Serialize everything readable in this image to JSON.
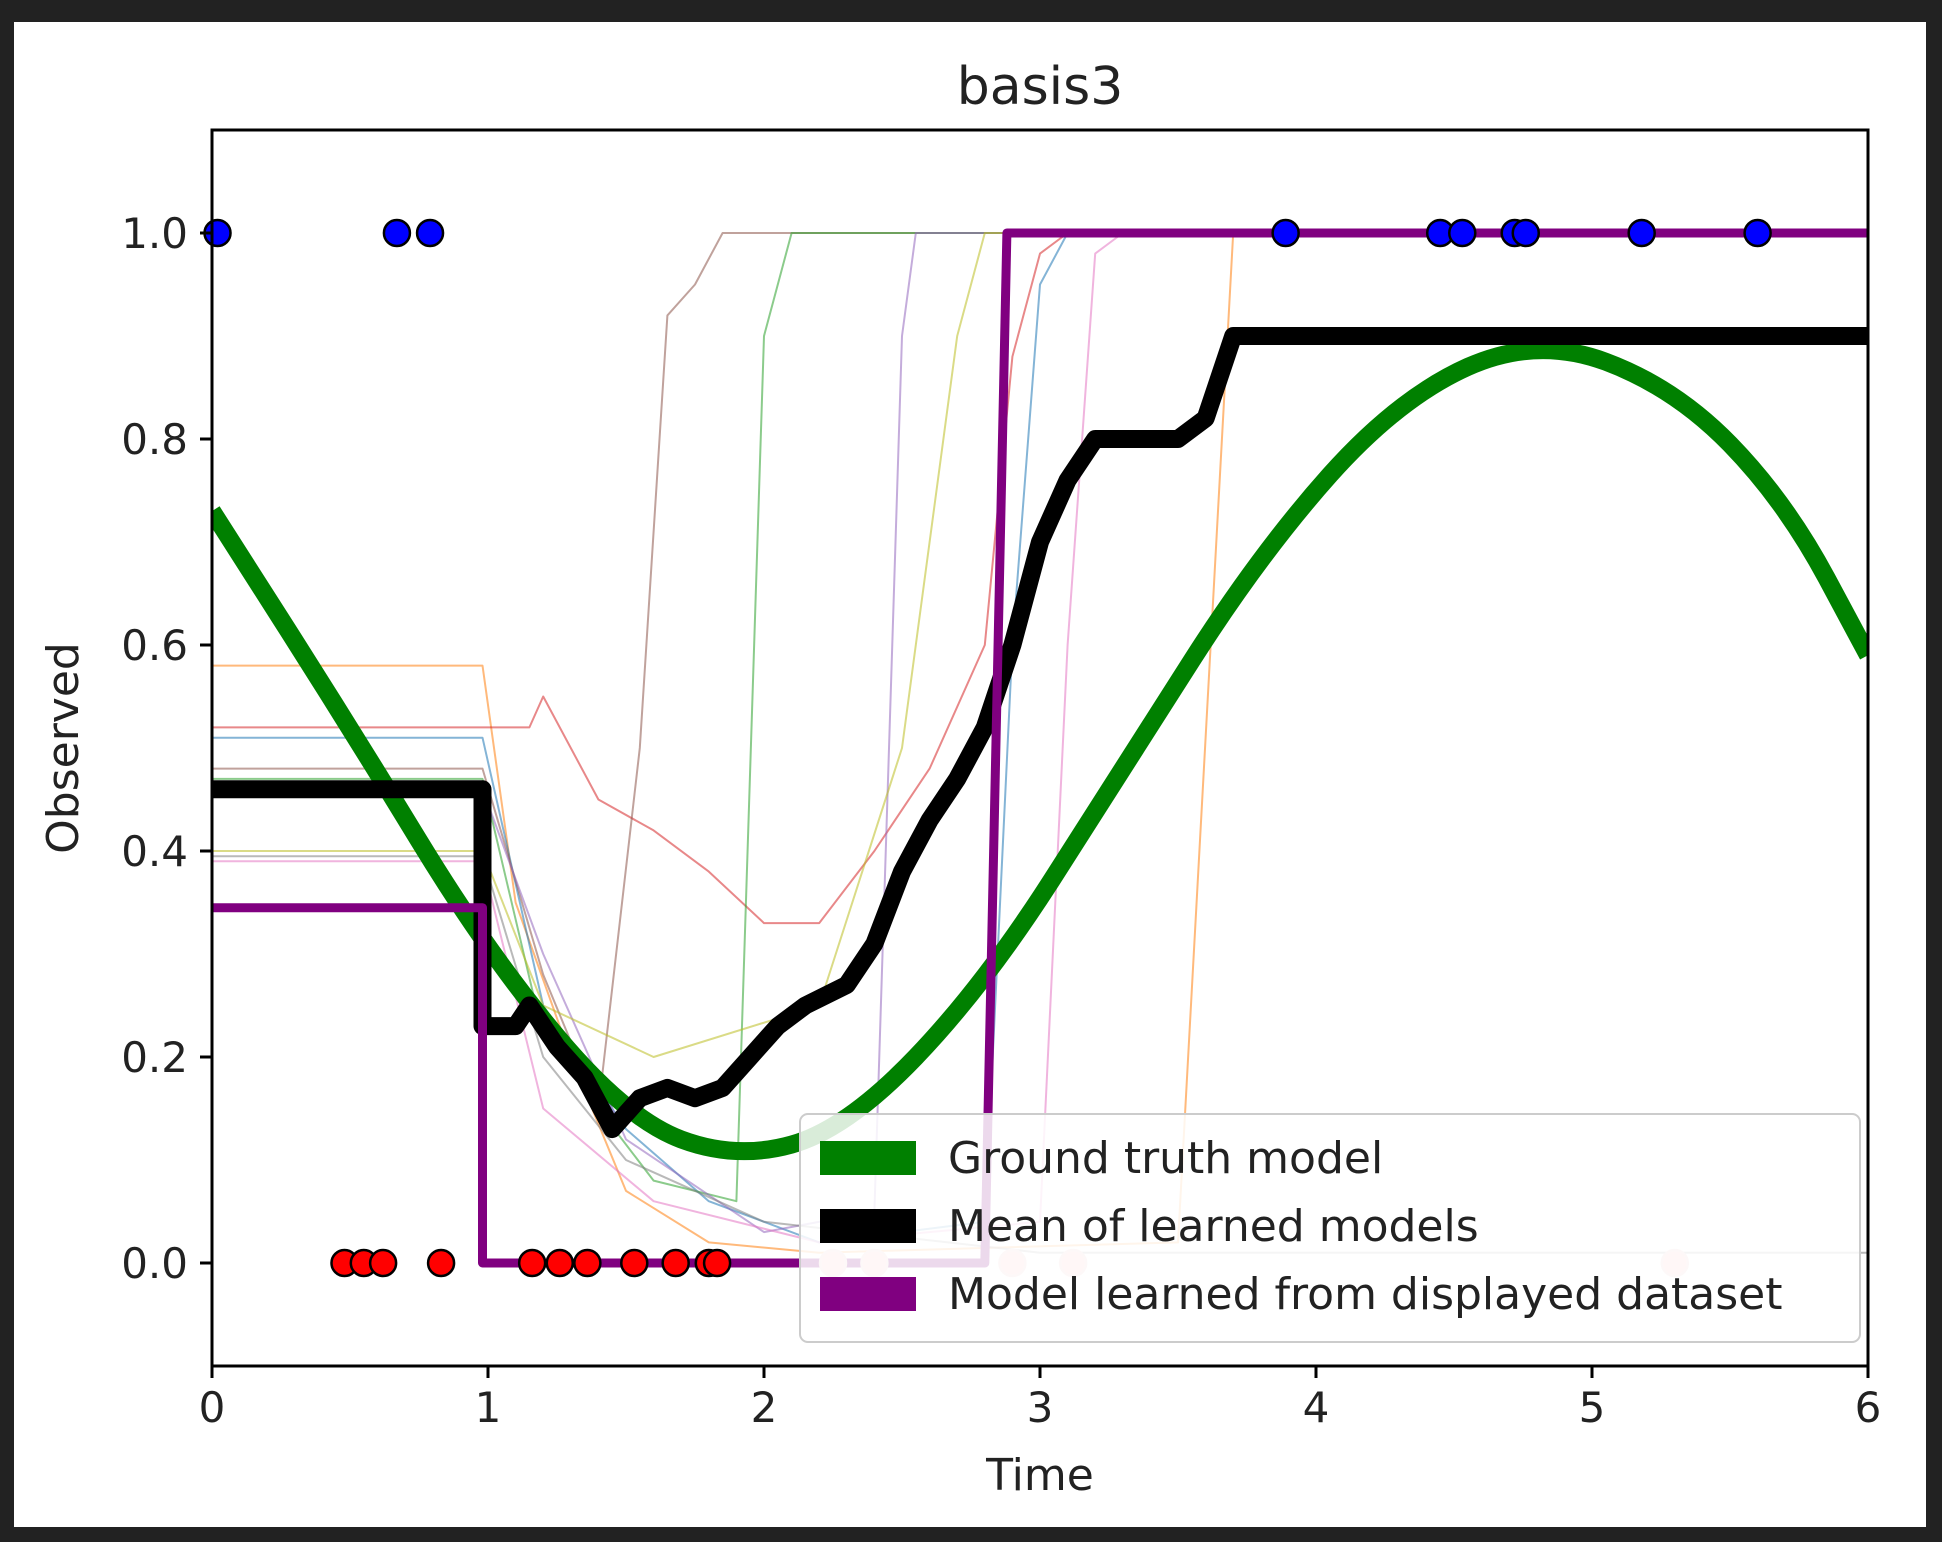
{
  "chart_data": {
    "type": "line",
    "title": "basis3",
    "xlabel": "Time",
    "ylabel": "Observed",
    "xlim": [
      0,
      6
    ],
    "ylim": [
      -0.1,
      1.1
    ],
    "x_ticks": [
      "0",
      "1",
      "2",
      "3",
      "4",
      "5",
      "6"
    ],
    "y_ticks": [
      "0.0",
      "0.2",
      "0.4",
      "0.6",
      "0.8",
      "1.0"
    ],
    "x_tick_values": [
      0,
      1,
      2,
      3,
      4,
      5,
      6
    ],
    "y_tick_values": [
      0.0,
      0.2,
      0.4,
      0.6,
      0.8,
      1.0
    ],
    "legend_position": "lower-right",
    "legend": [
      {
        "label": "Ground truth model",
        "color": "#008000"
      },
      {
        "label": "Mean of learned models",
        "color": "#000000"
      },
      {
        "label": "Model learned from displayed dataset",
        "color": "#800080"
      }
    ],
    "series": [
      {
        "name": "Ground truth model",
        "color": "#008000",
        "kind": "sine",
        "points": [
          [
            0,
            0.73
          ],
          [
            0.5,
            0.52
          ],
          [
            1.0,
            0.3
          ],
          [
            1.5,
            0.14
          ],
          [
            1.9,
            0.1
          ],
          [
            2.3,
            0.13
          ],
          [
            2.8,
            0.27
          ],
          [
            3.3,
            0.48
          ],
          [
            3.8,
            0.69
          ],
          [
            4.3,
            0.84
          ],
          [
            4.8,
            0.9
          ],
          [
            5.3,
            0.85
          ],
          [
            5.7,
            0.74
          ],
          [
            6.0,
            0.59
          ]
        ]
      },
      {
        "name": "Mean of learned models",
        "color": "#000000",
        "points": [
          [
            0,
            0.46
          ],
          [
            0.98,
            0.46
          ],
          [
            0.98,
            0.23
          ],
          [
            1.1,
            0.23
          ],
          [
            1.15,
            0.25
          ],
          [
            1.25,
            0.21
          ],
          [
            1.35,
            0.18
          ],
          [
            1.45,
            0.13
          ],
          [
            1.55,
            0.16
          ],
          [
            1.65,
            0.17
          ],
          [
            1.75,
            0.16
          ],
          [
            1.85,
            0.17
          ],
          [
            1.95,
            0.2
          ],
          [
            2.05,
            0.23
          ],
          [
            2.15,
            0.25
          ],
          [
            2.3,
            0.27
          ],
          [
            2.4,
            0.31
          ],
          [
            2.5,
            0.38
          ],
          [
            2.6,
            0.43
          ],
          [
            2.7,
            0.47
          ],
          [
            2.8,
            0.52
          ],
          [
            2.9,
            0.6
          ],
          [
            3.0,
            0.7
          ],
          [
            3.1,
            0.76
          ],
          [
            3.2,
            0.8
          ],
          [
            3.5,
            0.8
          ],
          [
            3.6,
            0.82
          ],
          [
            3.7,
            0.9
          ],
          [
            6.0,
            0.9
          ]
        ]
      },
      {
        "name": "Model learned from displayed dataset",
        "color": "#800080",
        "points": [
          [
            0,
            0.345
          ],
          [
            0.98,
            0.345
          ],
          [
            0.98,
            0.0
          ],
          [
            2.8,
            0.0
          ],
          [
            2.88,
            1.0
          ],
          [
            6.0,
            1.0
          ]
        ]
      }
    ],
    "individual_models": [
      {
        "color": "#ff7f0e",
        "points": [
          [
            0,
            0.58
          ],
          [
            0.98,
            0.58
          ],
          [
            1.1,
            0.35
          ],
          [
            1.3,
            0.2
          ],
          [
            1.5,
            0.07
          ],
          [
            1.8,
            0.02
          ],
          [
            2.2,
            0.01
          ],
          [
            3.5,
            0.02
          ],
          [
            3.7,
            1.0
          ],
          [
            6.0,
            1.0
          ]
        ]
      },
      {
        "color": "#d62728",
        "points": [
          [
            0,
            0.52
          ],
          [
            1.15,
            0.52
          ],
          [
            1.2,
            0.55
          ],
          [
            1.4,
            0.45
          ],
          [
            1.6,
            0.42
          ],
          [
            1.8,
            0.38
          ],
          [
            2.0,
            0.33
          ],
          [
            2.2,
            0.33
          ],
          [
            2.4,
            0.4
          ],
          [
            2.6,
            0.48
          ],
          [
            2.8,
            0.6
          ],
          [
            2.9,
            0.88
          ],
          [
            3.0,
            0.98
          ],
          [
            3.1,
            1.0
          ],
          [
            6.0,
            1.0
          ]
        ]
      },
      {
        "color": "#1f77b4",
        "points": [
          [
            0,
            0.51
          ],
          [
            0.98,
            0.51
          ],
          [
            1.2,
            0.25
          ],
          [
            1.5,
            0.13
          ],
          [
            1.8,
            0.06
          ],
          [
            2.2,
            0.02
          ],
          [
            2.8,
            0.04
          ],
          [
            2.9,
            0.6
          ],
          [
            3.0,
            0.95
          ],
          [
            3.1,
            1.0
          ],
          [
            6.0,
            1.0
          ]
        ]
      },
      {
        "color": "#8c564b",
        "points": [
          [
            0,
            0.48
          ],
          [
            0.98,
            0.48
          ],
          [
            1.2,
            0.28
          ],
          [
            1.4,
            0.15
          ],
          [
            1.55,
            0.5
          ],
          [
            1.65,
            0.92
          ],
          [
            1.75,
            0.95
          ],
          [
            1.85,
            1.0
          ],
          [
            6.0,
            1.0
          ]
        ]
      },
      {
        "color": "#2ca02c",
        "points": [
          [
            0,
            0.47
          ],
          [
            0.98,
            0.47
          ],
          [
            1.2,
            0.22
          ],
          [
            1.6,
            0.08
          ],
          [
            1.9,
            0.06
          ],
          [
            2.0,
            0.9
          ],
          [
            2.1,
            1.0
          ],
          [
            6.0,
            1.0
          ]
        ]
      },
      {
        "color": "#9467bd",
        "points": [
          [
            0,
            0.46
          ],
          [
            0.98,
            0.46
          ],
          [
            1.2,
            0.3
          ],
          [
            1.5,
            0.12
          ],
          [
            2.0,
            0.03
          ],
          [
            2.4,
            0.05
          ],
          [
            2.5,
            0.9
          ],
          [
            2.55,
            1.0
          ],
          [
            6.0,
            1.0
          ]
        ]
      },
      {
        "color": "#bcbd22",
        "points": [
          [
            0,
            0.4
          ],
          [
            0.98,
            0.4
          ],
          [
            1.2,
            0.25
          ],
          [
            1.6,
            0.2
          ],
          [
            2.2,
            0.25
          ],
          [
            2.5,
            0.5
          ],
          [
            2.7,
            0.9
          ],
          [
            2.8,
            1.0
          ],
          [
            6.0,
            1.0
          ]
        ]
      },
      {
        "color": "#e377c2",
        "points": [
          [
            0,
            0.39
          ],
          [
            0.98,
            0.39
          ],
          [
            1.2,
            0.15
          ],
          [
            1.6,
            0.06
          ],
          [
            2.2,
            0.02
          ],
          [
            3.0,
            0.04
          ],
          [
            3.1,
            0.6
          ],
          [
            3.2,
            0.98
          ],
          [
            3.3,
            1.0
          ],
          [
            6.0,
            1.0
          ]
        ]
      },
      {
        "color": "#7f7f7f",
        "points": [
          [
            0,
            0.395
          ],
          [
            0.98,
            0.395
          ],
          [
            1.2,
            0.2
          ],
          [
            1.5,
            0.1
          ],
          [
            2.0,
            0.04
          ],
          [
            3.0,
            0.01
          ],
          [
            6.0,
            0.01
          ]
        ]
      }
    ],
    "observations_positive": {
      "color": "#0000ff",
      "y": 1.0,
      "x": [
        0.02,
        0.67,
        0.79,
        3.89,
        4.45,
        4.53,
        4.72,
        4.76,
        5.18,
        5.6
      ]
    },
    "observations_negative": {
      "color": "#ff0000",
      "y": 0.0,
      "x": [
        0.48,
        0.55,
        0.62,
        0.83,
        1.16,
        1.26,
        1.36,
        1.53,
        1.68,
        1.8,
        1.83
      ]
    },
    "observations_faded": {
      "color": "#ffc8c8",
      "y": 0.0,
      "x": [
        2.25,
        2.4,
        2.9,
        3.12,
        5.3
      ]
    }
  }
}
